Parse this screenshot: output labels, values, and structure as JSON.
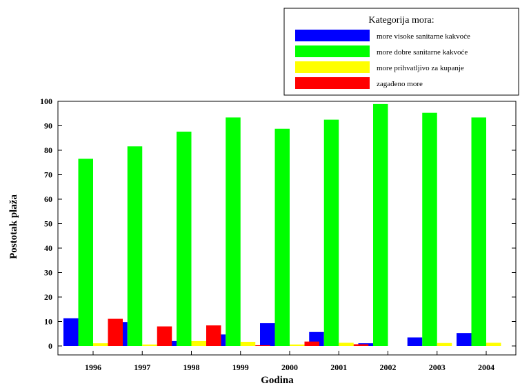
{
  "chart_data": {
    "type": "bar",
    "xlabel": "Godina",
    "ylabel": "Postotak plaža",
    "ylim": [
      0,
      100
    ],
    "yticks": [
      "0",
      "10",
      "20",
      "30",
      "40",
      "50",
      "60",
      "70",
      "80",
      "90",
      "100"
    ],
    "categories": [
      "1996",
      "1997",
      "1998",
      "1999",
      "2000",
      "2001",
      "2002",
      "2003",
      "2004"
    ],
    "legend_title": "Kategorija mora:",
    "legend_position": "top-right",
    "grid": false,
    "series": [
      {
        "name": "more visoke sanitarne kakvoće",
        "color": "#0000ff",
        "values": [
          11.3,
          9.8,
          2.0,
          4.7,
          9.3,
          5.7,
          1.1,
          3.5,
          5.3
        ]
      },
      {
        "name": "more dobre sanitarne kakvoće",
        "color": "#00ff00",
        "values": [
          76.5,
          81.6,
          87.6,
          93.4,
          88.8,
          92.5,
          98.9,
          95.3,
          93.4
        ]
      },
      {
        "name": "more prihvatljivo za kupanje",
        "color": "#ffff00",
        "values": [
          1.1,
          0.6,
          2.0,
          1.7,
          0.6,
          1.3,
          0.0,
          1.2,
          1.3
        ]
      },
      {
        "name": "zagađeno more",
        "color": "#ff0000",
        "values": [
          11.1,
          8.0,
          8.4,
          0.3,
          1.8,
          0.7,
          0.0,
          0.0,
          0.0
        ]
      }
    ]
  }
}
